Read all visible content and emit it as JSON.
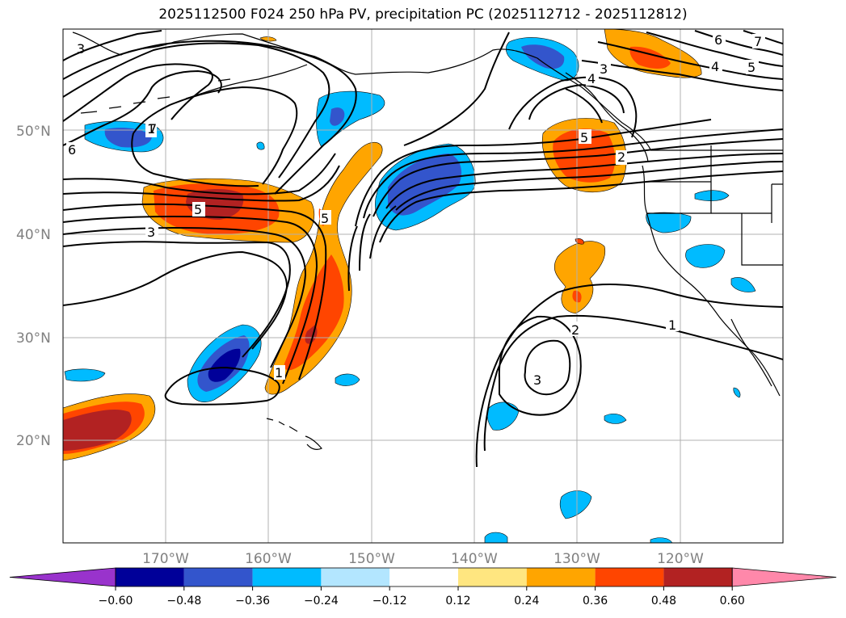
{
  "title": "2025112500 F024 250 hPa PV, precipitation PC (2025112712 - 2025112812)",
  "lat_labels": [
    "50°N",
    "40°N",
    "30°N",
    "20°N"
  ],
  "lon_labels": [
    "170°W",
    "160°W",
    "150°W",
    "140°W",
    "130°W",
    "120°W"
  ],
  "colorbar": {
    "ticks": [
      "−0.60",
      "−0.48",
      "−0.36",
      "−0.24",
      "−0.12",
      "0.12",
      "0.24",
      "0.36",
      "0.48",
      "0.60"
    ],
    "colors": [
      "#9933cc",
      "#000099",
      "#3355cc",
      "#00bbff",
      "#b3e6ff",
      "#ffffff",
      "#ffe680",
      "#ffa500",
      "#ff4500",
      "#b22222",
      "#ff88aa"
    ]
  },
  "pv_contour_labels": [
    "1",
    "1",
    "1",
    "2",
    "2",
    "3",
    "3",
    "3",
    "3",
    "4",
    "4",
    "5",
    "5",
    "5",
    "5",
    "6",
    "6",
    "7",
    "7"
  ]
}
